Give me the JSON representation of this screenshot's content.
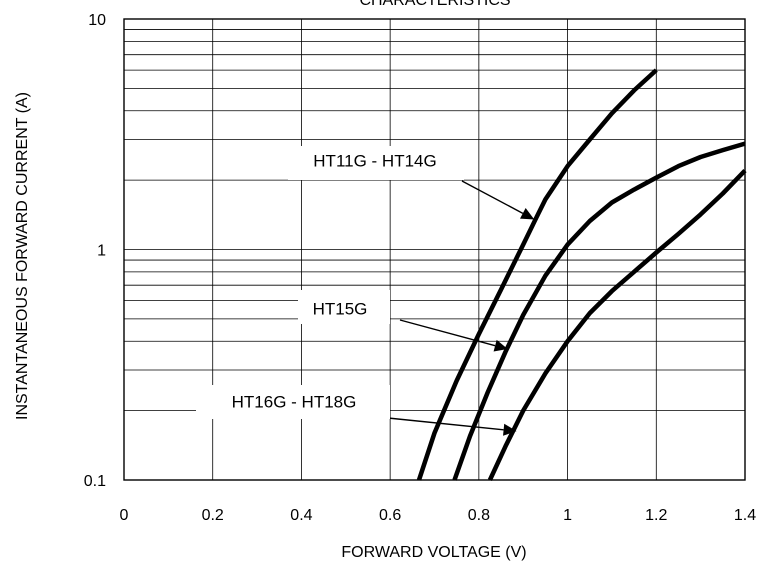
{
  "chart_data": {
    "type": "line",
    "title": "CHARACTERISTICS",
    "xlabel": "FORWARD VOLTAGE (V)",
    "ylabel": "INSTANTANEOUS FORWARD CURRENT (A)",
    "xlim": [
      0,
      1.4
    ],
    "ylim": [
      0.1,
      10
    ],
    "yscale": "log",
    "grid": true,
    "x_ticks": [
      0,
      0.2,
      0.4,
      0.6,
      0.8,
      1.0,
      1.2,
      1.4
    ],
    "x_tick_labels": [
      "0",
      "0.2",
      "0.4",
      "0.6",
      "0.8",
      "1",
      "1.2",
      "1.4"
    ],
    "y_ticks": [
      0.1,
      1,
      10
    ],
    "y_tick_labels": [
      "0.1",
      "1",
      "10"
    ],
    "series": [
      {
        "name": "HT11G - HT14G",
        "x": [
          0.665,
          0.7,
          0.75,
          0.8,
          0.85,
          0.9,
          0.93,
          0.95,
          1.0,
          1.05,
          1.1,
          1.15,
          1.2
        ],
        "y": [
          0.1,
          0.16,
          0.27,
          0.43,
          0.67,
          1.05,
          1.38,
          1.65,
          2.3,
          3.0,
          3.9,
          4.9,
          6.0
        ]
      },
      {
        "name": "HT15G",
        "x": [
          0.745,
          0.78,
          0.82,
          0.86,
          0.9,
          0.95,
          1.0,
          1.05,
          1.1,
          1.15,
          1.2,
          1.25,
          1.3,
          1.35,
          1.4
        ],
        "y": [
          0.1,
          0.155,
          0.24,
          0.36,
          0.52,
          0.77,
          1.05,
          1.33,
          1.6,
          1.82,
          2.05,
          2.3,
          2.52,
          2.7,
          2.88
        ]
      },
      {
        "name": "HT16G - HT18G",
        "x": [
          0.825,
          0.86,
          0.9,
          0.95,
          1.0,
          1.05,
          1.1,
          1.15,
          1.2,
          1.25,
          1.3,
          1.35,
          1.4
        ],
        "y": [
          0.1,
          0.14,
          0.2,
          0.29,
          0.4,
          0.53,
          0.66,
          0.8,
          0.97,
          1.17,
          1.42,
          1.75,
          2.2
        ]
      }
    ],
    "annotations": [
      {
        "text": "HT11G - HT14G",
        "series": 0,
        "point": [
          0.925,
          1.35
        ]
      },
      {
        "text": "HT15G",
        "series": 1,
        "point": [
          0.865,
          0.37
        ]
      },
      {
        "text": "HT16G - HT18G",
        "series": 2,
        "point": [
          0.885,
          0.163
        ]
      }
    ]
  }
}
